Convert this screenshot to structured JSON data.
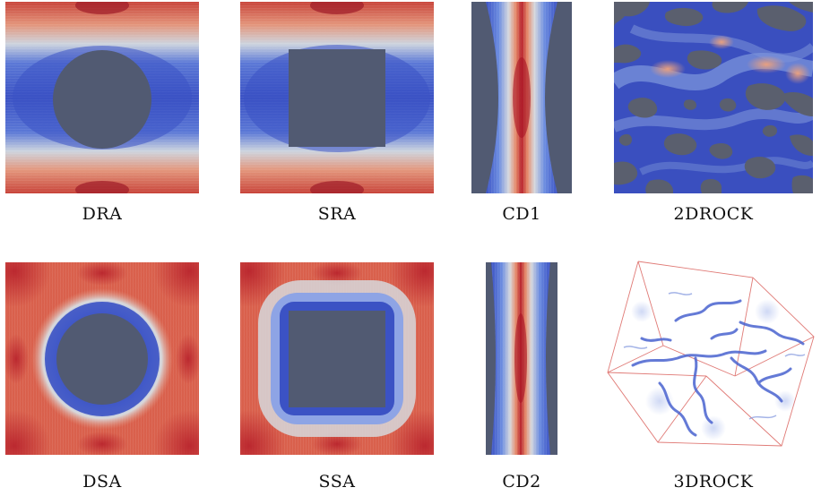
{
  "panels": [
    {
      "id": "dra",
      "label": "DRA"
    },
    {
      "id": "sra",
      "label": "SRA"
    },
    {
      "id": "cd1",
      "label": "CD1"
    },
    {
      "id": "rock2d",
      "label": "2DROCK"
    },
    {
      "id": "dsa",
      "label": "DSA"
    },
    {
      "id": "ssa",
      "label": "SSA"
    },
    {
      "id": "cd2",
      "label": "CD2"
    },
    {
      "id": "rock3d",
      "label": "3DROCK"
    }
  ],
  "colors": {
    "solid": "#515a72",
    "low": "#3a4cc0",
    "mid": "#dcdddd",
    "high": "#b40426"
  }
}
